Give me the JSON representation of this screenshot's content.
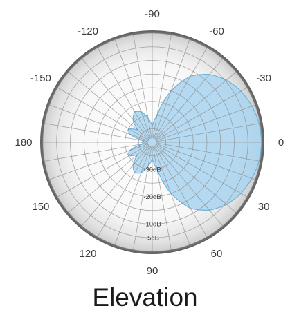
{
  "chart_data": {
    "type": "polar",
    "title": "Elevation",
    "angle_labels": [
      "0",
      "-30",
      "-60",
      "-90",
      "-120",
      "-150",
      "180",
      "150",
      "120",
      "90",
      "60",
      "30"
    ],
    "angle_values": [
      0,
      -30,
      -60,
      -90,
      -120,
      -150,
      180,
      150,
      120,
      90,
      60,
      30
    ],
    "radial_labels": [
      "-30dB",
      "-20dB",
      "-10dB",
      "-5dB"
    ],
    "radial_values_db": [
      -30,
      -20,
      -10,
      -5
    ],
    "radial_range_db": [
      -40,
      0
    ],
    "grid": true,
    "series": [
      {
        "color": "#a9d4ee",
        "angles_deg": [
          0,
          10,
          20,
          30,
          40,
          50,
          60,
          70,
          80,
          90,
          100,
          110,
          120,
          130,
          140,
          150,
          160,
          170,
          180,
          190,
          200,
          210,
          220,
          230,
          240,
          250,
          260,
          270,
          280,
          290,
          300,
          310,
          320,
          330,
          340,
          350
        ],
        "gain_db": [
          0,
          -0.3,
          -1.2,
          -2.5,
          -4.5,
          -7.5,
          -12,
          -20,
          -30,
          -34,
          -31,
          -28,
          -27,
          -29,
          -33,
          -30,
          -31,
          -37,
          -36,
          -37,
          -31,
          -30,
          -33,
          -29,
          -27,
          -28,
          -31,
          -34,
          -30,
          -20,
          -12,
          -7.5,
          -4.5,
          -2.5,
          -1.2,
          -0.3
        ]
      }
    ]
  },
  "colors": {
    "lobe_fill": "#a9d4ee",
    "lobe_stroke": "#6cb2dc",
    "grid": "#8a8a8a",
    "rim": "#7a7a7a"
  }
}
